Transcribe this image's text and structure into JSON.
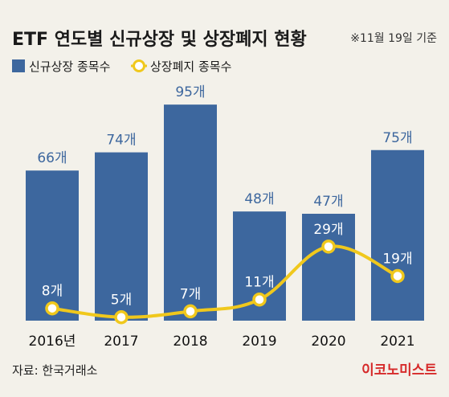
{
  "header": {
    "title": "ETF 연도별 신규상장 및 상장폐지 현황",
    "note": "※11월 19일 기준"
  },
  "legend": {
    "bar_label": "신규상장 종목수",
    "line_label": "상장폐지 종목수"
  },
  "footer": {
    "source": "자료: 한국거래소",
    "brand": "이코노미스트"
  },
  "colors": {
    "bar": "#3d679e",
    "line": "#f0c81c",
    "background": "#f3f1ea",
    "brand": "#d62a2a"
  },
  "chart_data": {
    "type": "bar",
    "categories": [
      "2016년",
      "2017",
      "2018",
      "2019",
      "2020",
      "2021"
    ],
    "series": [
      {
        "name": "신규상장 종목수",
        "type": "bar",
        "values": [
          66,
          74,
          95,
          48,
          47,
          75
        ],
        "labels": [
          "66개",
          "74개",
          "95개",
          "48개",
          "47개",
          "75개"
        ]
      },
      {
        "name": "상장폐지 종목수",
        "type": "line",
        "values": [
          8,
          5,
          7,
          11,
          29,
          19
        ],
        "labels": [
          "8개",
          "5개",
          "7개",
          "11개",
          "29개",
          "19개"
        ]
      }
    ],
    "title": "ETF 연도별 신규상장 및 상장폐지 현황",
    "xlabel": "",
    "ylabel": "",
    "legend": "top-left",
    "grid": false
  }
}
